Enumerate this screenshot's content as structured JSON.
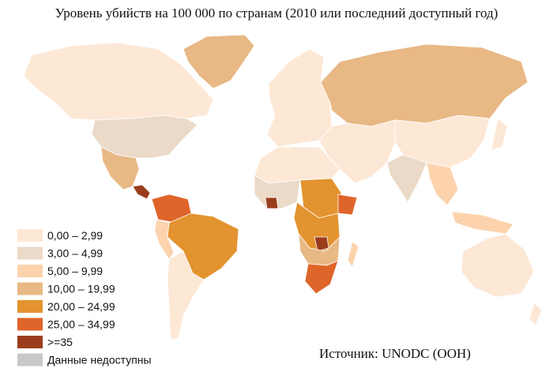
{
  "title": "Уровень убийств на 100 000 по странам (2010 или последний доступный год)",
  "legend": [
    {
      "label": "0,00 – 2,99",
      "color": "#fde8d6"
    },
    {
      "label": "3,00 – 4,99",
      "color": "#ebdac8"
    },
    {
      "label": "5,00 – 9,99",
      "color": "#fcd3ad"
    },
    {
      "label": "10,00 – 19,99",
      "color": "#e8b885"
    },
    {
      "label": "20,00 – 24,99",
      "color": "#e3932f"
    },
    {
      "label": "25,00 – 34,99",
      "color": "#df652a"
    },
    {
      "label": ">=35",
      "color": "#9b3d1d"
    },
    {
      "label": "Данные недоступны",
      "color": "#c8c8c8"
    }
  ],
  "source": "Источник: UNODC (ООН)"
}
